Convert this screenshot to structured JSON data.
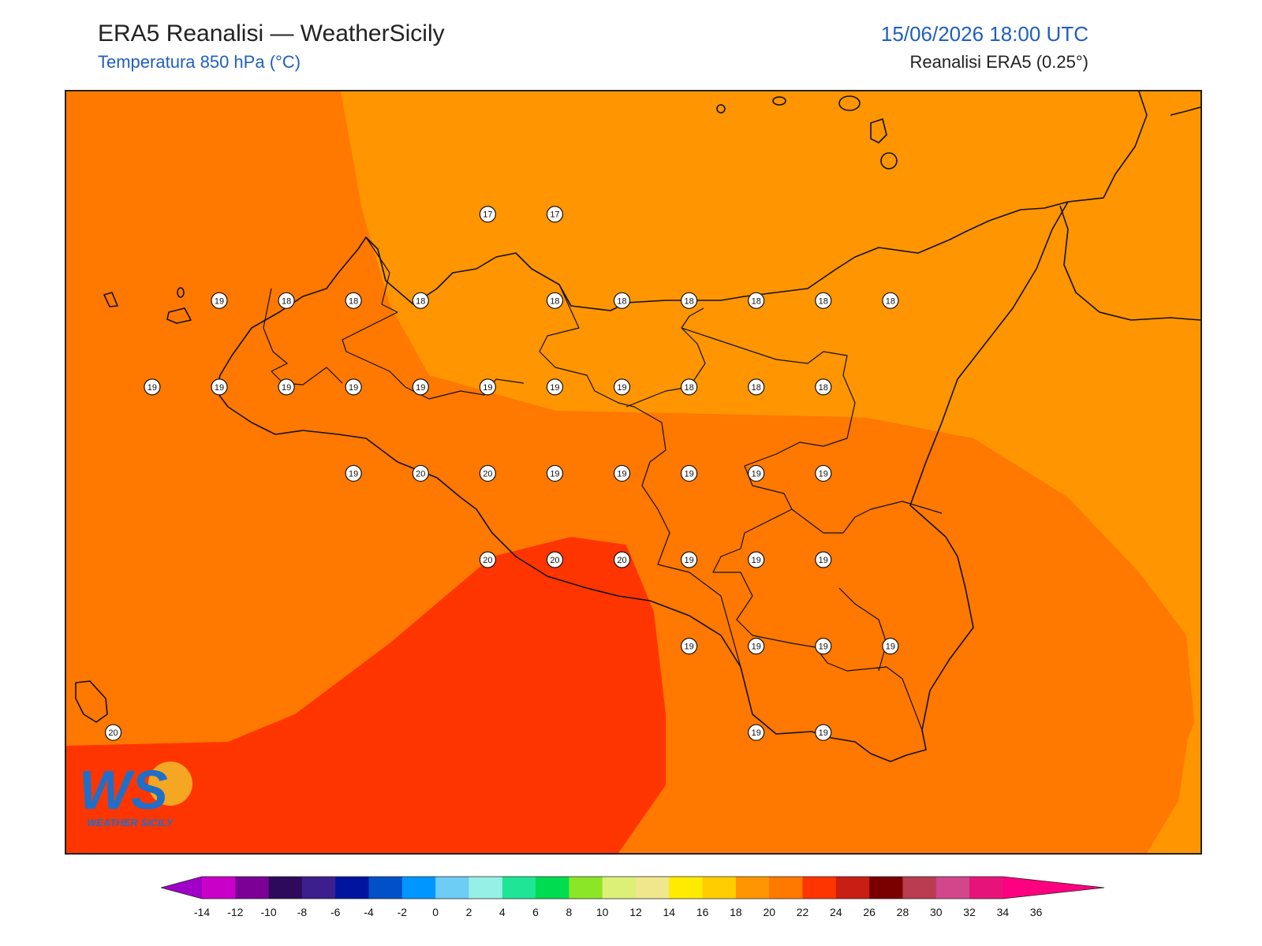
{
  "header": {
    "title": "ERA5 Reanalisi — WeatherSicily",
    "subtitle": "Temperatura 850 hPa (°C)",
    "datetime": "15/06/2026 18:00 UTC",
    "source": "Reanalisi ERA5 (0.25°)"
  },
  "logo": {
    "letters": "WS",
    "name": "WEATHER SICILY"
  },
  "map": {
    "region": "Sicilia",
    "zone_colors": {
      "t16_18": "#ff9500",
      "t18_20": "#ff7800",
      "t20_22": "#ff3500"
    },
    "labels": [
      {
        "value": "17",
        "lon": 15.09,
        "lat": 38.36
      },
      {
        "value": "17",
        "lon": 15.59,
        "lat": 38.36
      },
      {
        "value": "19",
        "lon": 13.09,
        "lat": 37.98
      },
      {
        "value": "18",
        "lon": 13.59,
        "lat": 37.98
      },
      {
        "value": "18",
        "lon": 14.09,
        "lat": 37.98
      },
      {
        "value": "18",
        "lon": 14.59,
        "lat": 37.98
      },
      {
        "value": "18",
        "lon": 15.59,
        "lat": 37.98
      },
      {
        "value": "18",
        "lon": 16.09,
        "lat": 37.98
      },
      {
        "value": "18",
        "lon": 16.59,
        "lat": 37.98
      },
      {
        "value": "18",
        "lon": 17.09,
        "lat": 37.98
      },
      {
        "value": "18",
        "lon": 17.59,
        "lat": 37.98
      },
      {
        "value": "18",
        "lon": 18.09,
        "lat": 37.98
      },
      {
        "value": "19",
        "lon": 12.59,
        "lat": 37.6
      },
      {
        "value": "19",
        "lon": 13.09,
        "lat": 37.6
      },
      {
        "value": "19",
        "lon": 13.59,
        "lat": 37.6
      },
      {
        "value": "19",
        "lon": 14.09,
        "lat": 37.6
      },
      {
        "value": "19",
        "lon": 14.59,
        "lat": 37.6
      },
      {
        "value": "19",
        "lon": 15.09,
        "lat": 37.6
      },
      {
        "value": "19",
        "lon": 15.59,
        "lat": 37.6
      },
      {
        "value": "19",
        "lon": 16.09,
        "lat": 37.6
      },
      {
        "value": "18",
        "lon": 16.59,
        "lat": 37.6
      },
      {
        "value": "18",
        "lon": 17.09,
        "lat": 37.6
      },
      {
        "value": "18",
        "lon": 17.59,
        "lat": 37.6
      },
      {
        "value": "19",
        "lon": 14.09,
        "lat": 37.22
      },
      {
        "value": "20",
        "lon": 14.59,
        "lat": 37.22
      },
      {
        "value": "20",
        "lon": 15.09,
        "lat": 37.22
      },
      {
        "value": "19",
        "lon": 15.59,
        "lat": 37.22
      },
      {
        "value": "19",
        "lon": 16.09,
        "lat": 37.22
      },
      {
        "value": "19",
        "lon": 16.59,
        "lat": 37.22
      },
      {
        "value": "19",
        "lon": 17.09,
        "lat": 37.22
      },
      {
        "value": "19",
        "lon": 17.59,
        "lat": 37.22
      },
      {
        "value": "20",
        "lon": 15.09,
        "lat": 36.84
      },
      {
        "value": "20",
        "lon": 15.59,
        "lat": 36.84
      },
      {
        "value": "20",
        "lon": 16.09,
        "lat": 36.84
      },
      {
        "value": "19",
        "lon": 16.59,
        "lat": 36.84
      },
      {
        "value": "19",
        "lon": 17.09,
        "lat": 36.84
      },
      {
        "value": "19",
        "lon": 17.59,
        "lat": 36.84
      },
      {
        "value": "19",
        "lon": 16.59,
        "lat": 36.46
      },
      {
        "value": "19",
        "lon": 17.09,
        "lat": 36.46
      },
      {
        "value": "19",
        "lon": 17.59,
        "lat": 36.46
      },
      {
        "value": "19",
        "lon": 18.09,
        "lat": 36.46
      },
      {
        "value": "20",
        "lon": 12.3,
        "lat": 36.08
      },
      {
        "value": "19",
        "lon": 17.09,
        "lat": 36.08
      },
      {
        "value": "19",
        "lon": 17.59,
        "lat": 36.08
      }
    ]
  },
  "colorbar": {
    "ticks": [
      "-14",
      "-12",
      "-10",
      "-8",
      "-6",
      "-4",
      "-2",
      "0",
      "2",
      "4",
      "6",
      "8",
      "10",
      "12",
      "14",
      "16",
      "18",
      "20",
      "22",
      "24",
      "26",
      "28",
      "30",
      "32",
      "34",
      "36"
    ],
    "colors": [
      "#a000c8",
      "#c800c8",
      "#7a0096",
      "#2d0a5a",
      "#3c1e8c",
      "#0014a0",
      "#0050c8",
      "#0096ff",
      "#6ecdf5",
      "#96f0e6",
      "#1ee696",
      "#00dc50",
      "#8ce628",
      "#dcf078",
      "#f0e68c",
      "#ffeb00",
      "#ffcd00",
      "#ff9500",
      "#ff7800",
      "#ff3500",
      "#c81e14",
      "#7a0000",
      "#b93c50",
      "#d2468c",
      "#e6147a",
      "#ff0080"
    ]
  }
}
